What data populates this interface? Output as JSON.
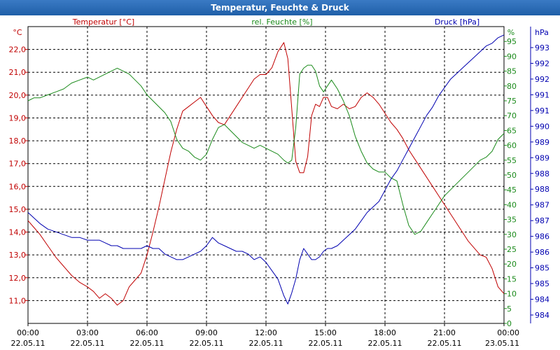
{
  "window": {
    "title": "Temperatur, Feuchte & Druck"
  },
  "colors": {
    "temperature": "#c00000",
    "humidity": "#1a8a1a",
    "pressure": "#0000b0",
    "grid": "#000000",
    "title_bar": "#2b6cb5"
  },
  "chart_data": {
    "type": "line",
    "title": "Temperatur, Feuchte & Druck",
    "xlabel": "",
    "x_range": [
      0,
      24
    ],
    "x_ticks": [
      {
        "x": 0,
        "time": "00:00",
        "date": "22.05.11"
      },
      {
        "x": 3,
        "time": "03:00",
        "date": "22.05.11"
      },
      {
        "x": 6,
        "time": "06:00",
        "date": "22.05.11"
      },
      {
        "x": 9,
        "time": "09:00",
        "date": "22.05.11"
      },
      {
        "x": 12,
        "time": "12:00",
        "date": "22.05.11"
      },
      {
        "x": 15,
        "time": "15:00",
        "date": "22.05.11"
      },
      {
        "x": 18,
        "time": "18:00",
        "date": "22.05.11"
      },
      {
        "x": 21,
        "time": "21:00",
        "date": "22.05.11"
      },
      {
        "x": 24,
        "time": "00:00",
        "date": "23.05.11"
      }
    ],
    "axes": {
      "temperature": {
        "label": "Temperatur [°C]",
        "unit": "°C",
        "range": [
          10.0,
          23.0
        ],
        "ticks": [
          {
            "v": 11.0,
            "label": "11,0"
          },
          {
            "v": 12.0,
            "label": "12,0"
          },
          {
            "v": 13.0,
            "label": "13,0"
          },
          {
            "v": 14.0,
            "label": "14,0"
          },
          {
            "v": 15.0,
            "label": "15,0"
          },
          {
            "v": 16.0,
            "label": "16,0"
          },
          {
            "v": 17.0,
            "label": "17,0"
          },
          {
            "v": 18.0,
            "label": "18,0"
          },
          {
            "v": 19.0,
            "label": "19,0"
          },
          {
            "v": 20.0,
            "label": "20,0"
          },
          {
            "v": 21.0,
            "label": "21,0"
          },
          {
            "v": 22.0,
            "label": "22,0"
          }
        ]
      },
      "humidity": {
        "label": "rel. Feuchte [%]",
        "unit": "%",
        "range": [
          0,
          100
        ],
        "ticks": [
          {
            "v": 0,
            "label": "0"
          },
          {
            "v": 5,
            "label": "5"
          },
          {
            "v": 10,
            "label": "10"
          },
          {
            "v": 15,
            "label": "15"
          },
          {
            "v": 20,
            "label": "20"
          },
          {
            "v": 25,
            "label": "25"
          },
          {
            "v": 30,
            "label": "30"
          },
          {
            "v": 35,
            "label": "35"
          },
          {
            "v": 40,
            "label": "40"
          },
          {
            "v": 45,
            "label": "45"
          },
          {
            "v": 50,
            "label": "50"
          },
          {
            "v": 55,
            "label": "55"
          },
          {
            "v": 60,
            "label": "60"
          },
          {
            "v": 65,
            "label": "65"
          },
          {
            "v": 70,
            "label": "70"
          },
          {
            "v": 75,
            "label": "75"
          },
          {
            "v": 80,
            "label": "80"
          },
          {
            "v": 85,
            "label": "85"
          },
          {
            "v": 90,
            "label": "90"
          },
          {
            "v": 95,
            "label": "95"
          }
        ]
      },
      "pressure": {
        "label": "Druck [hPa]",
        "unit": "hPa",
        "range": [
          983.3,
          994.0
        ],
        "tick_labels": [
          "984",
          "984",
          "985",
          "985",
          "986",
          "986",
          "987",
          "987",
          "988",
          "988",
          "989",
          "989",
          "990",
          "991",
          "991",
          "992",
          "992",
          "993"
        ]
      }
    },
    "series": [
      {
        "name": "Temperatur [°C]",
        "axis": "temperature",
        "color": "#c00000",
        "x": [
          0,
          0.3,
          0.6,
          1.0,
          1.4,
          1.8,
          2.2,
          2.6,
          3.0,
          3.3,
          3.6,
          3.9,
          4.2,
          4.5,
          4.8,
          5.1,
          5.4,
          5.7,
          6.0,
          6.3,
          6.6,
          6.9,
          7.2,
          7.5,
          7.8,
          8.1,
          8.4,
          8.7,
          9.0,
          9.3,
          9.6,
          9.9,
          10.2,
          10.5,
          10.8,
          11.1,
          11.4,
          11.7,
          12.0,
          12.3,
          12.6,
          12.9,
          13.1,
          13.3,
          13.5,
          13.7,
          13.9,
          14.1,
          14.3,
          14.5,
          14.7,
          14.9,
          15.1,
          15.3,
          15.6,
          15.9,
          16.2,
          16.5,
          16.8,
          17.1,
          17.4,
          17.7,
          18.0,
          18.3,
          18.6,
          18.9,
          19.2,
          19.5,
          19.8,
          20.1,
          20.4,
          20.7,
          21.0,
          21.3,
          21.6,
          21.9,
          22.2,
          22.5,
          22.8,
          23.1,
          23.4,
          23.7,
          24.0
        ],
        "values": [
          14.5,
          14.2,
          13.9,
          13.4,
          12.9,
          12.5,
          12.1,
          11.8,
          11.6,
          11.4,
          11.1,
          11.3,
          11.1,
          10.8,
          11.0,
          11.6,
          11.9,
          12.2,
          13.0,
          14.0,
          15.1,
          16.3,
          17.5,
          18.5,
          19.3,
          19.5,
          19.7,
          19.9,
          19.5,
          19.1,
          18.8,
          18.7,
          19.1,
          19.5,
          19.9,
          20.3,
          20.7,
          20.9,
          20.9,
          21.2,
          21.9,
          22.3,
          21.6,
          19.4,
          17.1,
          16.6,
          16.6,
          17.3,
          19.1,
          19.6,
          19.5,
          19.9,
          19.9,
          19.5,
          19.4,
          19.6,
          19.4,
          19.5,
          19.9,
          20.1,
          19.9,
          19.6,
          19.2,
          18.8,
          18.5,
          18.1,
          17.6,
          17.2,
          16.8,
          16.4,
          16.0,
          15.6,
          15.2,
          14.8,
          14.4,
          14.0,
          13.6,
          13.3,
          13.0,
          12.9,
          12.4,
          11.6,
          11.3
        ]
      },
      {
        "name": "rel. Feuchte [%]",
        "axis": "humidity",
        "color": "#1a8a1a",
        "x": [
          0,
          0.3,
          0.6,
          1.0,
          1.4,
          1.8,
          2.2,
          2.6,
          3.0,
          3.3,
          3.6,
          3.9,
          4.2,
          4.5,
          4.8,
          5.1,
          5.4,
          5.7,
          6.0,
          6.3,
          6.6,
          6.9,
          7.2,
          7.5,
          7.8,
          8.1,
          8.4,
          8.7,
          9.0,
          9.3,
          9.6,
          9.9,
          10.2,
          10.5,
          10.8,
          11.1,
          11.4,
          11.7,
          12.0,
          12.3,
          12.6,
          12.9,
          13.1,
          13.3,
          13.5,
          13.7,
          13.9,
          14.1,
          14.3,
          14.5,
          14.7,
          14.9,
          15.1,
          15.3,
          15.6,
          15.9,
          16.2,
          16.5,
          16.8,
          17.1,
          17.4,
          17.7,
          18.0,
          18.3,
          18.6,
          18.9,
          19.2,
          19.5,
          19.8,
          20.1,
          20.4,
          20.7,
          21.0,
          21.3,
          21.6,
          21.9,
          22.2,
          22.5,
          22.8,
          23.1,
          23.4,
          23.7,
          24.0
        ],
        "values": [
          75,
          76,
          76,
          77,
          78,
          79,
          81,
          82,
          83,
          82,
          83,
          84,
          85,
          86,
          85,
          84,
          82,
          80,
          77,
          75,
          73,
          71,
          68,
          62,
          59,
          58,
          56,
          55,
          57,
          62,
          66,
          67,
          65,
          63,
          61,
          60,
          59,
          60,
          59,
          58,
          57,
          55,
          54,
          55,
          66,
          84,
          86,
          87,
          87,
          85,
          80,
          78,
          80,
          82,
          79,
          75,
          70,
          63,
          58,
          54,
          52,
          51,
          51,
          49,
          48,
          40,
          33,
          30,
          31,
          34,
          37,
          40,
          43,
          45,
          47,
          49,
          51,
          53,
          55,
          56,
          58,
          62,
          64
        ]
      },
      {
        "name": "Druck [hPa]",
        "axis": "pressure",
        "color": "#0000b0",
        "x": [
          0,
          0.3,
          0.6,
          1.0,
          1.4,
          1.8,
          2.2,
          2.6,
          3.0,
          3.3,
          3.6,
          3.9,
          4.2,
          4.5,
          4.8,
          5.1,
          5.4,
          5.7,
          6.0,
          6.3,
          6.6,
          6.9,
          7.2,
          7.5,
          7.8,
          8.1,
          8.4,
          8.7,
          9.0,
          9.3,
          9.6,
          9.9,
          10.2,
          10.5,
          10.8,
          11.1,
          11.4,
          11.7,
          12.0,
          12.3,
          12.6,
          12.9,
          13.1,
          13.3,
          13.5,
          13.7,
          13.9,
          14.1,
          14.3,
          14.5,
          14.7,
          14.9,
          15.1,
          15.3,
          15.6,
          15.9,
          16.2,
          16.5,
          16.8,
          17.1,
          17.4,
          17.7,
          18.0,
          18.3,
          18.6,
          18.9,
          19.2,
          19.5,
          19.8,
          20.1,
          20.4,
          20.7,
          21.0,
          21.3,
          21.6,
          21.9,
          22.2,
          22.5,
          22.8,
          23.1,
          23.4,
          23.7,
          24.0
        ],
        "values": [
          987.3,
          987.1,
          986.9,
          986.7,
          986.6,
          986.5,
          986.4,
          986.4,
          986.3,
          986.3,
          986.3,
          986.2,
          986.1,
          986.1,
          986.0,
          986.0,
          986.0,
          986.0,
          986.1,
          986.0,
          986.0,
          985.8,
          985.7,
          985.6,
          985.6,
          985.7,
          985.8,
          985.9,
          986.1,
          986.4,
          986.2,
          986.1,
          986.0,
          985.9,
          985.9,
          985.8,
          985.6,
          985.7,
          985.5,
          985.2,
          984.9,
          984.3,
          984.0,
          984.4,
          984.9,
          985.6,
          986.0,
          985.8,
          985.6,
          985.6,
          985.7,
          985.9,
          986.0,
          986.0,
          986.1,
          986.3,
          986.5,
          986.7,
          987.0,
          987.3,
          987.5,
          987.7,
          988.1,
          988.5,
          988.8,
          989.2,
          989.6,
          990.0,
          990.4,
          990.8,
          991.1,
          991.5,
          991.8,
          992.1,
          992.3,
          992.5,
          992.7,
          992.9,
          993.1,
          993.3,
          993.4,
          993.6,
          993.7
        ]
      }
    ]
  }
}
